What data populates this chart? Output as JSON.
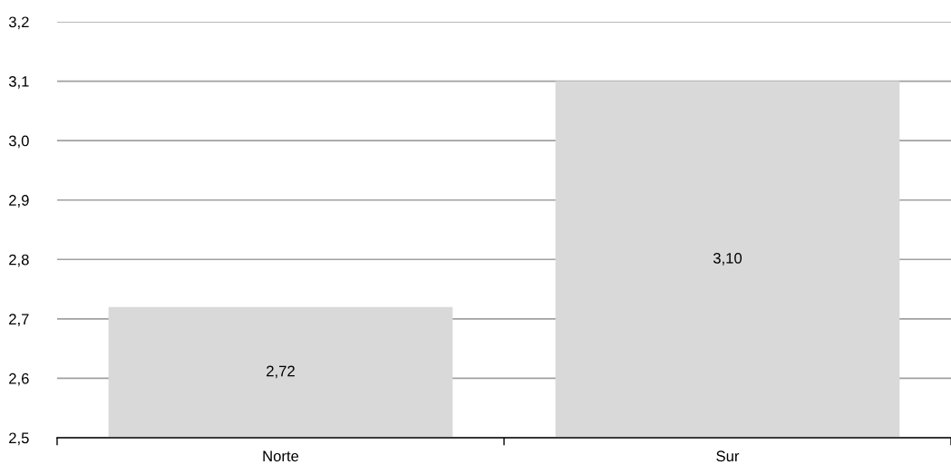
{
  "chart_data": {
    "type": "bar",
    "categories": [
      "Norte",
      "Sur"
    ],
    "values": [
      2.72,
      3.1
    ],
    "color": "#d9d9d9",
    "value_labels": [
      "2,72",
      "3,10"
    ],
    "ylim": [
      2.5,
      3.2
    ],
    "yticks": [
      {
        "value": 2.5,
        "label": "2,5"
      },
      {
        "value": 2.6,
        "label": "2,6"
      },
      {
        "value": 2.7,
        "label": "2,7"
      },
      {
        "value": 2.8,
        "label": "2,8"
      },
      {
        "value": 2.9,
        "label": "2,9"
      },
      {
        "value": 3.0,
        "label": "3,0"
      },
      {
        "value": 3.1,
        "label": "3,1"
      },
      {
        "value": 3.2,
        "label": "3,2"
      }
    ],
    "grid": "y",
    "legend": false
  }
}
